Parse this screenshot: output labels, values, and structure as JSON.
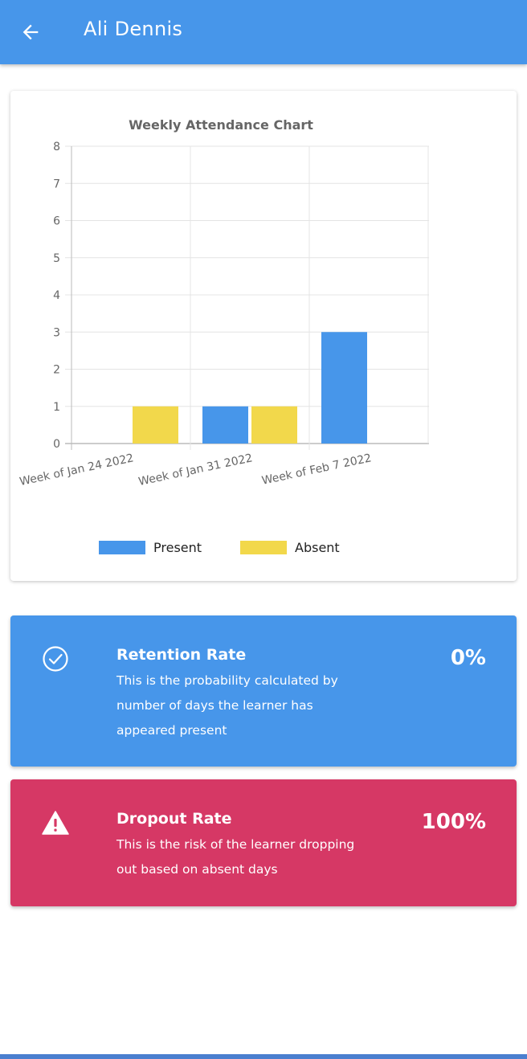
{
  "header": {
    "title": "Ali Dennis",
    "back_icon": "arrow-left-icon"
  },
  "colors": {
    "primary": "#4796ea",
    "present": "#4796ea",
    "absent": "#f2d84b",
    "danger": "#d63865"
  },
  "chart_data": {
    "type": "bar",
    "title": "Weekly Attendance Chart",
    "categories": [
      "Week of Jan 24 2022",
      "Week of Jan 31 2022",
      "Week of Feb 7 2022"
    ],
    "series": [
      {
        "name": "Present",
        "color": "#4796ea",
        "values": [
          0,
          1,
          3
        ]
      },
      {
        "name": "Absent",
        "color": "#f2d84b",
        "values": [
          1,
          1,
          0
        ]
      }
    ],
    "ylim": [
      0,
      8
    ],
    "yticks": [
      "0",
      "1",
      "2",
      "3",
      "4",
      "5",
      "6",
      "7",
      "8"
    ],
    "grid": true,
    "legend_position": "bottom"
  },
  "retention": {
    "icon": "check-circle-icon",
    "title": "Retention Rate",
    "description": "This is the probability calculated by number of days the learner has appeared present",
    "value": "0%"
  },
  "dropout": {
    "icon": "warning-icon",
    "title": "Dropout Rate",
    "description": "This is the risk of the learner dropping out based on absent days",
    "value": "100%"
  }
}
